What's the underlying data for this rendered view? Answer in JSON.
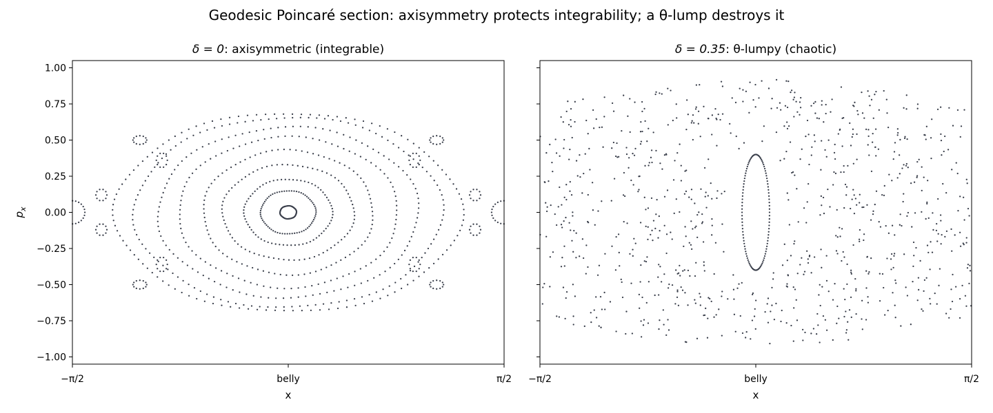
{
  "figure": {
    "suptitle": "Geodesic Poincaré section: axisymmetry protects integrability; a θ-lump destroys it"
  },
  "chart_data": [
    {
      "type": "scatter",
      "title_math": "δ = 0",
      "title_rest": ": axisymmetric (integrable)",
      "xlabel": "x",
      "ylabel": "p",
      "ylabel_sub": "x",
      "xlim": [
        -1.5708,
        1.5708
      ],
      "ylim": [
        -1.05,
        1.05
      ],
      "xticks": [
        {
          "value": -1.5708,
          "label": "−π/2"
        },
        {
          "value": 0,
          "label": "belly"
        },
        {
          "value": 1.5708,
          "label": "π/2"
        }
      ],
      "yticks": [
        {
          "value": -1.0,
          "label": "−1.00"
        },
        {
          "value": -0.75,
          "label": "−0.75"
        },
        {
          "value": -0.5,
          "label": "−0.50"
        },
        {
          "value": -0.25,
          "label": "−0.25"
        },
        {
          "value": 0.0,
          "label": "0.00"
        },
        {
          "value": 0.25,
          "label": "0.25"
        },
        {
          "value": 0.5,
          "label": "0.50"
        },
        {
          "value": 0.75,
          "label": "0.75"
        },
        {
          "value": 1.0,
          "label": "1.00"
        }
      ],
      "show_yticklabels": true,
      "marker_color": "#3a3f4b",
      "rings": [
        {
          "a": 0.06,
          "b": 0.045,
          "n": 60
        },
        {
          "a": 0.2,
          "b": 0.15,
          "n": 70
        },
        {
          "a": 0.32,
          "b": 0.23,
          "n": 70
        },
        {
          "a": 0.48,
          "b": 0.33,
          "n": 80
        },
        {
          "a": 0.62,
          "b": 0.43,
          "n": 90
        },
        {
          "a": 0.8,
          "b": 0.52,
          "n": 100
        },
        {
          "a": 0.95,
          "b": 0.59,
          "n": 110
        },
        {
          "a": 1.12,
          "b": 0.66,
          "n": 120
        },
        {
          "a": 1.26,
          "b": 0.69,
          "n": 120
        }
      ],
      "islands": [
        {
          "x": 1.57,
          "y": 0.0,
          "a": 0.09,
          "b": 0.08,
          "n": 24
        },
        {
          "x": -1.57,
          "y": 0.0,
          "a": 0.09,
          "b": 0.08,
          "n": 24
        },
        {
          "x": -1.36,
          "y": 0.12,
          "a": 0.04,
          "b": 0.04,
          "n": 10
        },
        {
          "x": 1.36,
          "y": 0.12,
          "a": 0.04,
          "b": 0.04,
          "n": 10
        },
        {
          "x": -1.36,
          "y": -0.12,
          "a": 0.04,
          "b": 0.04,
          "n": 10
        },
        {
          "x": 1.36,
          "y": -0.12,
          "a": 0.04,
          "b": 0.04,
          "n": 10
        },
        {
          "x": -1.08,
          "y": 0.5,
          "a": 0.05,
          "b": 0.03,
          "n": 12
        },
        {
          "x": 1.08,
          "y": 0.5,
          "a": 0.05,
          "b": 0.03,
          "n": 12
        },
        {
          "x": -1.08,
          "y": -0.5,
          "a": 0.05,
          "b": 0.03,
          "n": 12
        },
        {
          "x": 1.08,
          "y": -0.5,
          "a": 0.05,
          "b": 0.03,
          "n": 12
        },
        {
          "x": -0.92,
          "y": 0.36,
          "a": 0.04,
          "b": 0.05,
          "n": 10
        },
        {
          "x": 0.92,
          "y": 0.36,
          "a": 0.04,
          "b": 0.05,
          "n": 10
        },
        {
          "x": -0.92,
          "y": -0.36,
          "a": 0.04,
          "b": 0.05,
          "n": 10
        },
        {
          "x": 0.92,
          "y": -0.36,
          "a": 0.04,
          "b": 0.05,
          "n": 10
        }
      ]
    },
    {
      "type": "scatter",
      "title_math": "δ = 0.35",
      "title_rest": ": θ-lumpy (chaotic)",
      "xlabel": "x",
      "ylabel": "",
      "xlim": [
        -1.5708,
        1.5708
      ],
      "ylim": [
        -1.05,
        1.05
      ],
      "xticks": [
        {
          "value": -1.5708,
          "label": "−π/2"
        },
        {
          "value": 0,
          "label": "belly"
        },
        {
          "value": 1.5708,
          "label": "π/2"
        }
      ],
      "yticks": [
        {
          "value": -1.0,
          "label": ""
        },
        {
          "value": -0.75,
          "label": ""
        },
        {
          "value": -0.5,
          "label": ""
        },
        {
          "value": -0.25,
          "label": ""
        },
        {
          "value": 0.0,
          "label": ""
        },
        {
          "value": 0.25,
          "label": ""
        },
        {
          "value": 0.5,
          "label": ""
        },
        {
          "value": 0.75,
          "label": ""
        },
        {
          "value": 1.0,
          "label": ""
        }
      ],
      "show_yticklabels": false,
      "marker_color": "#3a3f4b",
      "stable_ring": {
        "a": 0.1,
        "b": 0.4,
        "n": 110
      },
      "chaotic_sea": {
        "n": 900,
        "inner_exclusion_a": 0.22,
        "inner_exclusion_b": 0.5,
        "y_max_at_center": 0.92,
        "y_at_edge": 0.72
      }
    }
  ]
}
